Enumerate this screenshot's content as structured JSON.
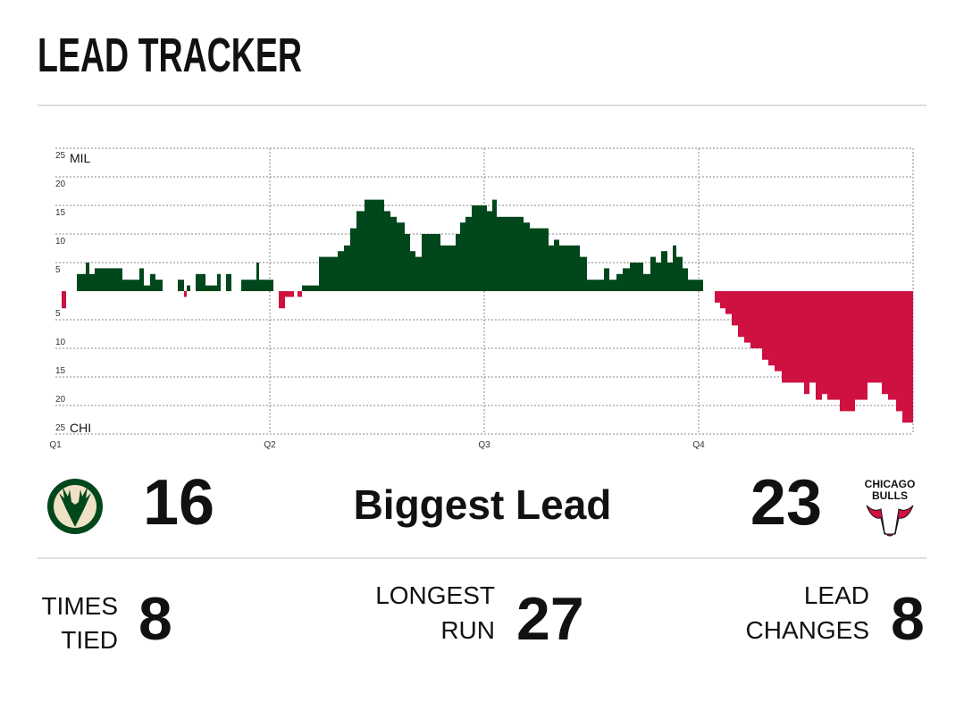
{
  "title": "LEAD TRACKER",
  "chart_data": {
    "type": "step-bar",
    "y_top_label": "MIL",
    "y_bottom_label": "CHI",
    "positive_color": "#00471b",
    "negative_color": "#ce1141",
    "x": [
      0,
      0.35,
      0.6,
      1.2,
      1.7,
      1.9,
      2.2,
      3.75,
      4.7,
      4.95,
      5.3,
      5.6,
      6.0,
      6.85,
      7.2,
      7.35,
      7.55,
      7.85,
      8.4,
      9.05,
      9.25,
      9.55,
      9.85,
      10.4,
      11.25,
      11.4,
      12.2,
      12.5,
      12.85,
      13.35,
      13.55,
      13.8,
      14.75,
      15.8,
      16.15,
      16.5,
      16.85,
      17.3,
      18.4,
      18.75,
      19.1,
      19.55,
      19.85,
      20.15,
      20.5,
      21.55,
      22.4,
      22.65,
      22.95,
      23.3,
      24.15,
      24.45,
      24.7,
      26.2,
      26.55,
      27.6,
      27.9,
      28.2,
      29.35,
      29.75,
      30.7,
      31.0,
      31.4,
      31.75,
      32.15,
      32.9,
      33.3,
      33.6,
      33.9,
      34.25,
      34.55,
      34.75,
      35.1,
      35.4,
      36.25,
      36.9,
      37.2,
      37.5,
      37.85,
      38.2,
      38.55,
      38.9,
      39.55,
      39.9,
      40.25,
      40.65,
      41.9,
      42.2,
      42.55,
      42.9,
      43.2,
      43.9,
      44.75,
      45.45,
      46.25,
      46.6,
      47.05,
      47.4
    ],
    "values": [
      0,
      -3,
      0,
      3,
      5,
      3,
      4,
      2,
      4,
      1,
      3,
      2,
      0,
      2,
      -1,
      1,
      0,
      3,
      1,
      3,
      0,
      3,
      0,
      2,
      5,
      2,
      0,
      -3,
      -1,
      0,
      -1,
      1,
      6,
      7,
      8,
      11,
      14,
      16,
      14,
      13,
      12,
      10,
      7,
      6,
      10,
      8,
      10,
      12,
      13,
      15,
      14,
      16,
      13,
      12,
      11,
      8,
      9,
      8,
      6,
      2,
      4,
      2,
      3,
      4,
      5,
      3,
      6,
      5,
      7,
      5,
      8,
      6,
      4,
      2,
      0,
      -2,
      -3,
      -4,
      -6,
      -8,
      -9,
      -10,
      -12,
      -13,
      -14,
      -16,
      -18,
      -16,
      -19,
      -18,
      -19,
      -21,
      -19,
      -16,
      -18,
      -19,
      -21,
      -23
    ],
    "xlim": [
      0,
      48
    ],
    "xticks": [
      {
        "value": 0,
        "label": "Q1"
      },
      {
        "value": 12,
        "label": "Q2"
      },
      {
        "value": 24,
        "label": "Q3"
      },
      {
        "value": 36,
        "label": "Q4"
      }
    ],
    "ylim": [
      -25,
      25
    ],
    "yticks": [
      25,
      20,
      15,
      10,
      5,
      {
        "value": -5,
        "label": "5"
      },
      {
        "value": -10,
        "label": "10"
      },
      {
        "value": -15,
        "label": "15"
      },
      {
        "value": -20,
        "label": "20"
      },
      {
        "value": -25,
        "label": "25"
      }
    ],
    "grid": true
  },
  "biggest_lead": {
    "label": "Biggest Lead",
    "home": 16,
    "away": 23
  },
  "away_logo": [
    "CHICAGO",
    "BULLS"
  ],
  "stats": {
    "times_tied": {
      "label": [
        "TIMES",
        "TIED"
      ],
      "value": 8
    },
    "longest_run": {
      "label": [
        "LONGEST",
        "RUN"
      ],
      "value": 27
    },
    "lead_changes": {
      "label": [
        "LEAD",
        "CHANGES"
      ],
      "value": 8
    }
  }
}
